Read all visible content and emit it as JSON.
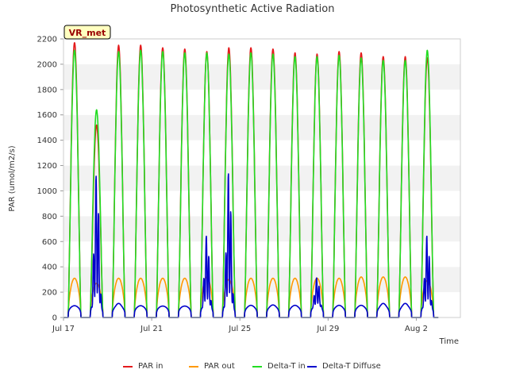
{
  "chart_data": {
    "type": "line",
    "title": "Photosynthetic Active Radiation",
    "xlabel": "Time",
    "ylabel": "PAR (umol/m2/s)",
    "site_label": "VR_met",
    "ylim": [
      0,
      2200
    ],
    "xlim": [
      "2024-07-17",
      "2024-08-04"
    ],
    "y_ticks": [
      0,
      200,
      400,
      600,
      800,
      1000,
      1200,
      1400,
      1600,
      1800,
      2000,
      2200
    ],
    "x_ticks": [
      {
        "day": 0,
        "label": "Jul 17"
      },
      {
        "day": 4,
        "label": "Jul 21"
      },
      {
        "day": 8,
        "label": "Jul 25"
      },
      {
        "day": 12,
        "label": "Jul 29"
      },
      {
        "day": 16,
        "label": "Aug 2"
      }
    ],
    "grid": "horizontal bands",
    "legend_position": "bottom",
    "day_length_hours": 14,
    "series": [
      {
        "name": "PAR in",
        "color": "#e41a1c",
        "daily_peak": [
          2170,
          1520,
          2150,
          2150,
          2130,
          2120,
          2100,
          2130,
          2130,
          2120,
          2090,
          2080,
          2100,
          2090,
          2060,
          2060,
          2050
        ]
      },
      {
        "name": "PAR out",
        "color": "#ff9900",
        "daily_peak": [
          310,
          270,
          310,
          310,
          310,
          310,
          320,
          300,
          310,
          310,
          310,
          310,
          310,
          320,
          320,
          320,
          290
        ]
      },
      {
        "name": "Delta-T in",
        "color": "#22dd22",
        "daily_peak": [
          2110,
          1640,
          2100,
          2110,
          2100,
          2090,
          2090,
          2080,
          2090,
          2080,
          2060,
          2060,
          2070,
          2050,
          2030,
          2030,
          2110
        ]
      },
      {
        "name": "Delta-T Diffuse",
        "color": "#0000cc",
        "daily_peak": [
          100,
          1150,
          160,
          100,
          90,
          90,
          660,
          1170,
          110,
          120,
          110,
          320,
          110,
          110,
          160,
          160,
          660
        ]
      }
    ]
  }
}
